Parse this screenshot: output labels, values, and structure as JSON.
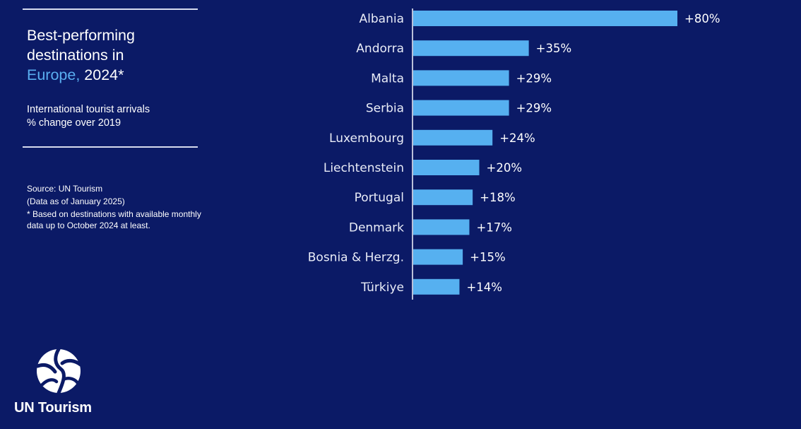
{
  "panel": {
    "title_line1": "Best-performing",
    "title_line2": "destinations in",
    "title_accent": "Europe,",
    "title_year": " 2024*",
    "subtitle_line1": "International tourist arrivals",
    "subtitle_line2": "% change over 2019",
    "source": "Source: UN Tourism",
    "data_as_of": "(Data as of January 2025)",
    "footnote": "* Based on destinations with available monthly data up to October 2024 at least."
  },
  "logo": {
    "icon": "un-tourism-globe-icon",
    "text": "UN Tourism"
  },
  "colors": {
    "background": "#0b1a66",
    "bar": "#56b0f0",
    "accent": "#5aaef0",
    "text": "#ffffff"
  },
  "chart_data": {
    "type": "bar",
    "orientation": "horizontal",
    "categories": [
      "Albania",
      "Andorra",
      "Malta",
      "Serbia",
      "Luxembourg",
      "Liechtenstein",
      "Portugal",
      "Denmark",
      "Bosnia & Herzg.",
      "Türkiye"
    ],
    "values": [
      80,
      35,
      29,
      29,
      24,
      20,
      18,
      17,
      15,
      14
    ],
    "value_labels": [
      "+80%",
      "+35%",
      "+29%",
      "+29%",
      "+24%",
      "+20%",
      "+18%",
      "+17%",
      "+15%",
      "+14%"
    ],
    "title": "Best-performing destinations in Europe, 2024*",
    "xlabel": "",
    "ylabel": "",
    "grid": false,
    "legend": "none"
  }
}
